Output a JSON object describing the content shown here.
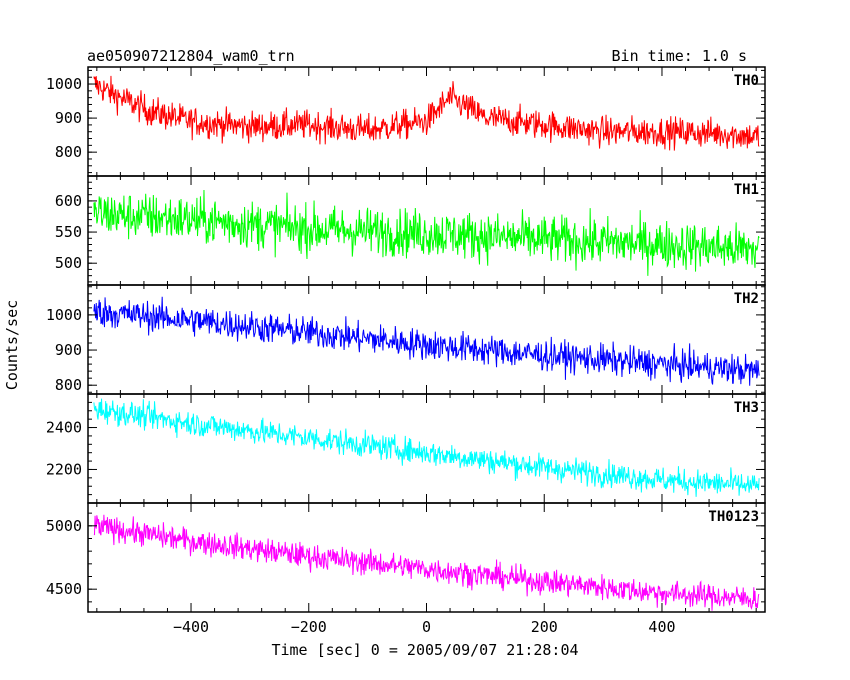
{
  "header": {
    "title": "ae050907212804_wam0_trn",
    "bin_time": "Bin time: 1.0 s"
  },
  "chart_data": {
    "type": "line",
    "xlabel": "Time [sec] 0 = 2005/09/07 21:28:04",
    "ylabel": "Counts/sec",
    "xlim": [
      -575,
      575
    ],
    "x_range": [
      -565,
      565
    ],
    "x_ticks": [
      -400,
      -200,
      0,
      200,
      400
    ],
    "x_tick_labels": [
      "−400",
      "−200",
      "0",
      "200",
      "400"
    ],
    "series": [
      {
        "name": "TH0",
        "color": "#ff0000",
        "ylim": [
          730,
          1050
        ],
        "y_ticks": [
          800,
          900,
          1000
        ],
        "y_tick_labels": [
          "800",
          "900",
          "1000"
        ],
        "trend": [
          [
            -565,
            1000
          ],
          [
            -520,
            960
          ],
          [
            -470,
            920
          ],
          [
            -400,
            890
          ],
          [
            -300,
            875
          ],
          [
            -200,
            880
          ],
          [
            -100,
            865
          ],
          [
            0,
            890
          ],
          [
            40,
            960
          ],
          [
            100,
            900
          ],
          [
            200,
            880
          ],
          [
            300,
            860
          ],
          [
            400,
            860
          ],
          [
            500,
            855
          ],
          [
            565,
            845
          ]
        ],
        "noise_amp": 40
      },
      {
        "name": "TH1",
        "color": "#00ff00",
        "ylim": [
          465,
          640
        ],
        "y_ticks": [
          500,
          550,
          600
        ],
        "y_tick_labels": [
          "500",
          "550",
          "600"
        ],
        "trend": [
          [
            -565,
            580
          ],
          [
            -400,
            570
          ],
          [
            -200,
            555
          ],
          [
            0,
            548
          ],
          [
            200,
            538
          ],
          [
            400,
            530
          ],
          [
            565,
            522
          ]
        ],
        "noise_amp": 35
      },
      {
        "name": "TH2",
        "color": "#0000ff",
        "ylim": [
          775,
          1085
        ],
        "y_ticks": [
          800,
          900,
          1000
        ],
        "y_tick_labels": [
          "800",
          "900",
          "1000"
        ],
        "trend": [
          [
            -565,
            1010
          ],
          [
            -400,
            985
          ],
          [
            -200,
            950
          ],
          [
            0,
            915
          ],
          [
            200,
            885
          ],
          [
            400,
            860
          ],
          [
            565,
            840
          ]
        ],
        "noise_amp": 40
      },
      {
        "name": "TH3",
        "color": "#00ffff",
        "ylim": [
          2040,
          2560
        ],
        "y_ticks": [
          2200,
          2400
        ],
        "y_tick_labels": [
          "2200",
          "2400"
        ],
        "trend": [
          [
            -565,
            2490
          ],
          [
            -400,
            2420
          ],
          [
            -200,
            2350
          ],
          [
            0,
            2280
          ],
          [
            200,
            2210
          ],
          [
            400,
            2150
          ],
          [
            565,
            2120
          ]
        ],
        "noise_amp": 55
      },
      {
        "name": "TH0123",
        "color": "#ff00ff",
        "ylim": [
          4320,
          5180
        ],
        "y_ticks": [
          4500,
          5000
        ],
        "y_tick_labels": [
          "4500",
          "5000"
        ],
        "trend": [
          [
            -565,
            5000
          ],
          [
            -400,
            4880
          ],
          [
            -200,
            4760
          ],
          [
            0,
            4660
          ],
          [
            200,
            4560
          ],
          [
            400,
            4470
          ],
          [
            565,
            4420
          ]
        ],
        "noise_amp": 90
      }
    ]
  }
}
